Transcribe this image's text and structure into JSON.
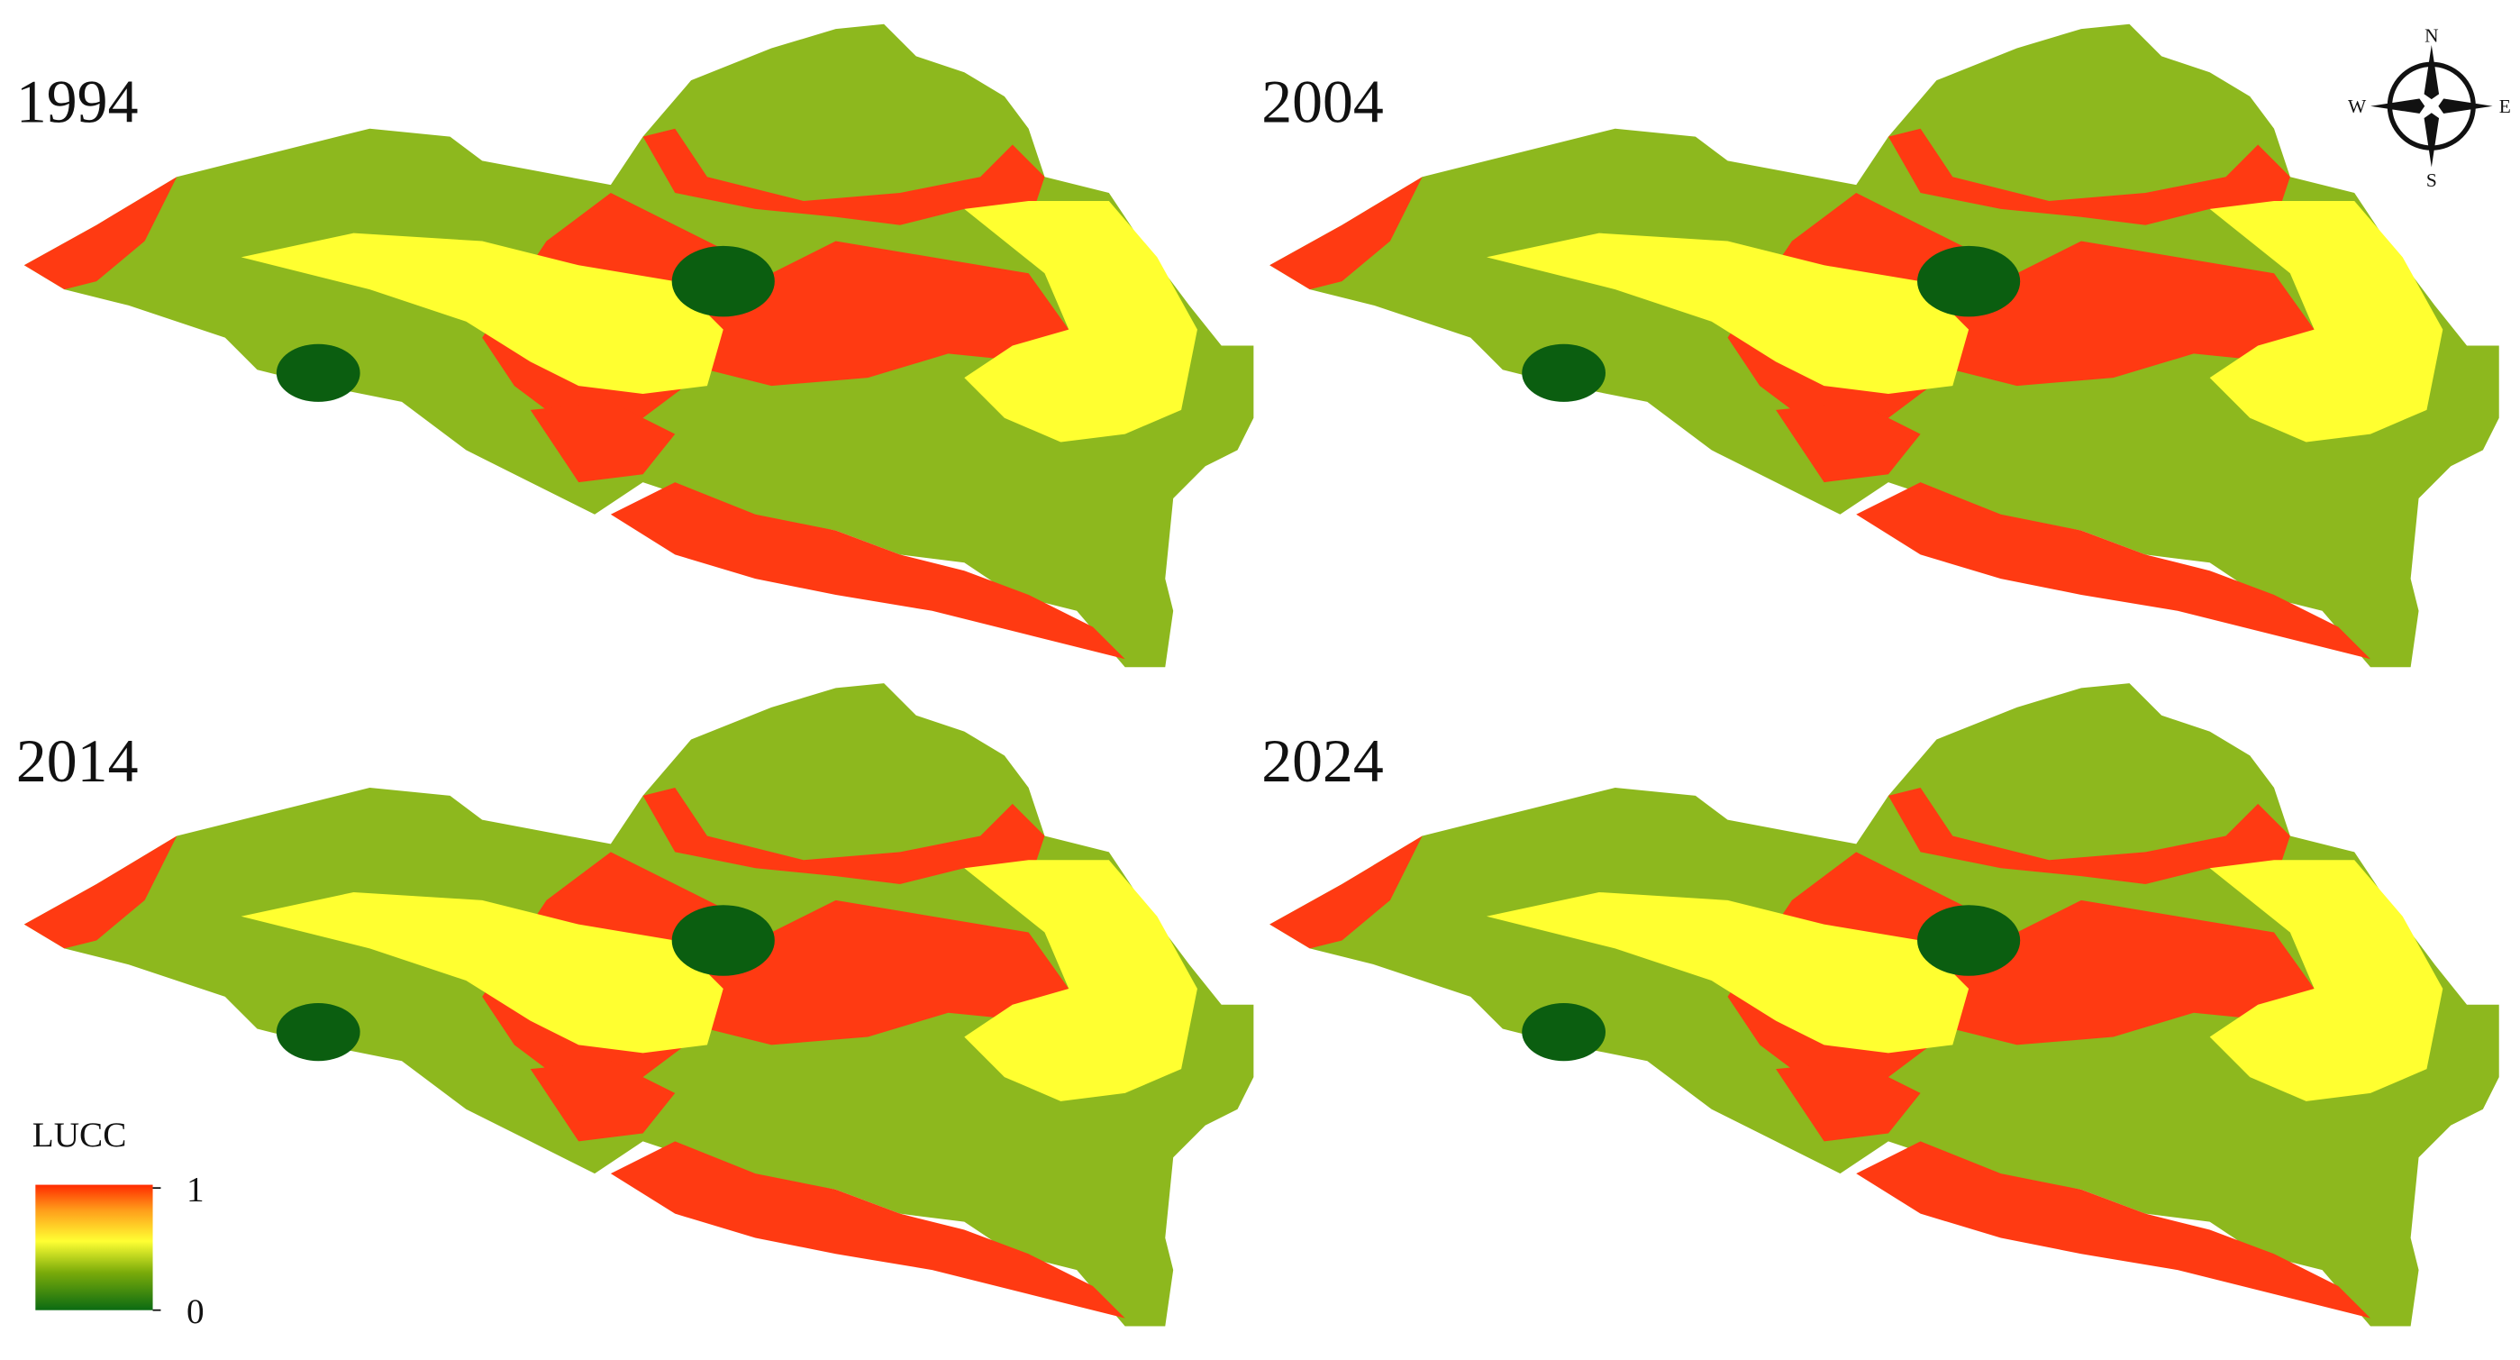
{
  "panels": [
    {
      "year": "1994"
    },
    {
      "year": "2004"
    },
    {
      "year": "2014"
    },
    {
      "year": "2024"
    }
  ],
  "compass": {
    "n": "N",
    "e": "E",
    "s": "S",
    "w": "W"
  },
  "legend": {
    "title": "LUCC",
    "range": [
      0,
      1
    ],
    "ticks": [
      0,
      1
    ]
  }
}
